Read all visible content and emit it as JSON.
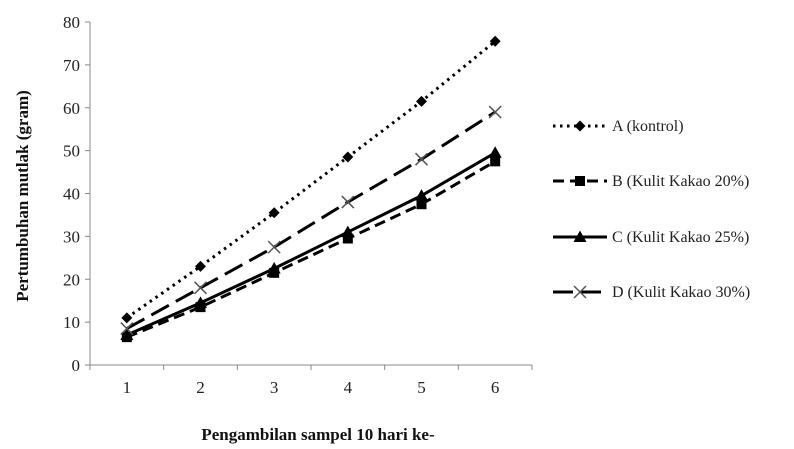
{
  "chart_data": {
    "type": "line",
    "title": "",
    "xlabel": "Pengambilan  sampel 10 hari ke-",
    "ylabel": "Pertumbuhan  mutlak  (gram)",
    "x": [
      1,
      2,
      3,
      4,
      5,
      6
    ],
    "x_tick_labels": [
      "1",
      "2",
      "3",
      "4",
      "5",
      "6"
    ],
    "ylim": [
      0,
      80
    ],
    "y_ticks": [
      0,
      10,
      20,
      30,
      40,
      50,
      60,
      70,
      80
    ],
    "y_tick_labels": [
      "0",
      "10",
      "20",
      "30",
      "40",
      "50",
      "60",
      "70",
      "80"
    ],
    "grid": false,
    "legend_position": "right",
    "series": [
      {
        "name": "A (kontrol)",
        "values": [
          11,
          23,
          35.5,
          48.5,
          61.5,
          75.5
        ],
        "style": "dotted",
        "marker": "diamond",
        "color": "#000000"
      },
      {
        "name": "B (Kulit Kakao 20%)",
        "values": [
          6.5,
          13.5,
          21.5,
          29.5,
          37.5,
          47.5
        ],
        "style": "dashed",
        "marker": "square",
        "color": "#000000"
      },
      {
        "name": "C (Kulit Kakao 25%)",
        "values": [
          7,
          14.5,
          22.5,
          31,
          39.5,
          49.5
        ],
        "style": "solid",
        "marker": "triangle",
        "color": "#000000"
      },
      {
        "name": "D (Kulit Kakao 30%)",
        "values": [
          8.5,
          18,
          27.5,
          38,
          48,
          59
        ],
        "style": "longdash",
        "marker": "x",
        "color": "#000000"
      }
    ]
  }
}
